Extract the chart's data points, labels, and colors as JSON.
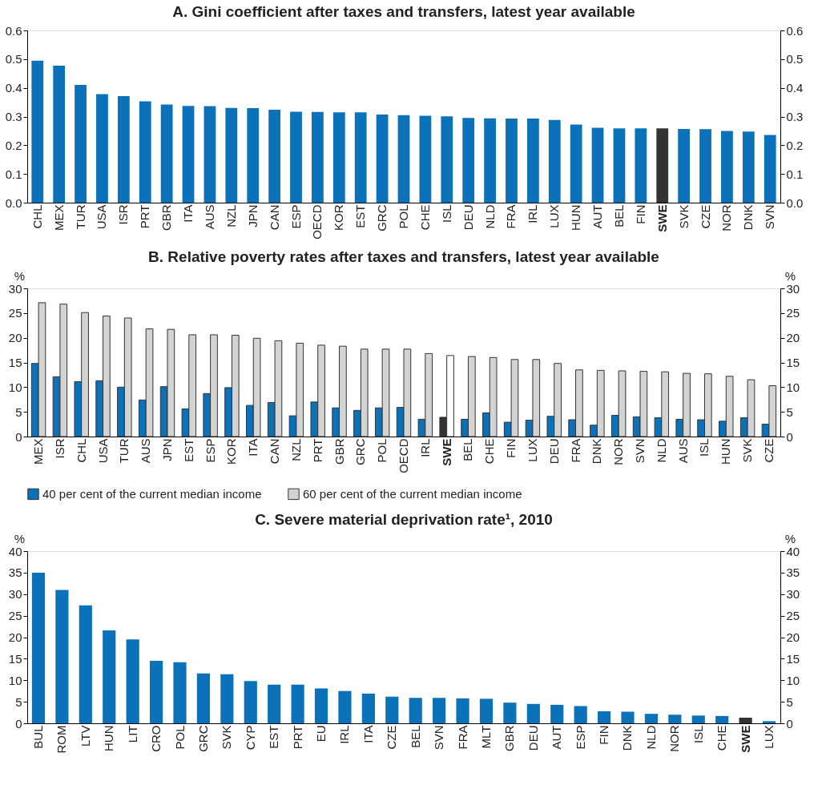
{
  "chart_data": [
    {
      "type": "bar",
      "title": "A. Gini coefficient after taxes and transfers, latest year available",
      "categories": [
        "CHL",
        "MEX",
        "TUR",
        "USA",
        "ISR",
        "PRT",
        "GBR",
        "ITA",
        "AUS",
        "NZL",
        "JPN",
        "CAN",
        "ESP",
        "OECD",
        "KOR",
        "EST",
        "GRC",
        "POL",
        "CHE",
        "ISL",
        "DEU",
        "NLD",
        "FRA",
        "IRL",
        "LUX",
        "HUN",
        "AUT",
        "BEL",
        "FIN",
        "SWE",
        "SVK",
        "CZE",
        "NOR",
        "DNK",
        "SVN"
      ],
      "values": [
        0.495,
        0.477,
        0.41,
        0.378,
        0.371,
        0.353,
        0.342,
        0.337,
        0.336,
        0.33,
        0.329,
        0.324,
        0.317,
        0.316,
        0.315,
        0.315,
        0.307,
        0.305,
        0.303,
        0.301,
        0.295,
        0.294,
        0.293,
        0.293,
        0.288,
        0.272,
        0.261,
        0.259,
        0.259,
        0.259,
        0.257,
        0.256,
        0.25,
        0.248,
        0.236
      ],
      "color": "#0b72b9",
      "colors": [
        "#0b72b9",
        "#0b72b9",
        "#0b72b9",
        "#0b72b9",
        "#0b72b9",
        "#0b72b9",
        "#0b72b9",
        "#0b72b9",
        "#0b72b9",
        "#0b72b9",
        "#0b72b9",
        "#0b72b9",
        "#0b72b9",
        "#0b72b9",
        "#0b72b9",
        "#0b72b9",
        "#0b72b9",
        "#0b72b9",
        "#0b72b9",
        "#0b72b9",
        "#0b72b9",
        "#0b72b9",
        "#0b72b9",
        "#0b72b9",
        "#0b72b9",
        "#0b72b9",
        "#0b72b9",
        "#0b72b9",
        "#0b72b9",
        "#333333",
        "#0b72b9",
        "#0b72b9",
        "#0b72b9",
        "#0b72b9",
        "#0b72b9"
      ],
      "ylim": [
        0,
        0.6
      ],
      "yticks": [
        {
          "value": 0,
          "label": "0.0"
        },
        0.1,
        0.2,
        0.3,
        0.4,
        0.5,
        0.6
      ],
      "y2lim": [
        0,
        0.6
      ],
      "y2ticks": [
        {
          "value": 0,
          "label": "0.0"
        },
        0.1,
        0.2,
        0.3,
        0.4,
        0.5,
        0.6
      ],
      "grid": false
    },
    {
      "type": "bar",
      "title": "B. Relative poverty rates after taxes and transfers, latest year available",
      "ylabel": "%",
      "y2label": "%",
      "categories": [
        "MEX",
        "ISR",
        "CHL",
        "USA",
        "TUR",
        "AUS",
        "JPN",
        "EST",
        "ESP",
        "KOR",
        "ITA",
        "CAN",
        "NZL",
        "PRT",
        "GBR",
        "GRC",
        "POL",
        "OECD",
        "IRL",
        "SWE",
        "BEL",
        "CHE",
        "FIN",
        "LUX",
        "DEU",
        "FRA",
        "DNK",
        "NOR",
        "SVN",
        "NLD",
        "AUS",
        "ISL",
        "HUN",
        "SVK",
        "CZE"
      ],
      "series": [
        {
          "name": "40 per cent of the current median income",
          "color": "#0b72b9",
          "values": [
            14.8,
            12.1,
            11.1,
            11.3,
            10.0,
            7.4,
            10.1,
            5.6,
            8.7,
            9.9,
            6.3,
            6.9,
            4.2,
            7.0,
            5.8,
            5.3,
            5.8,
            5.9,
            3.5,
            3.9,
            3.5,
            4.8,
            2.9,
            3.3,
            4.1,
            3.4,
            2.3,
            4.3,
            4.0,
            3.8,
            3.5,
            3.4,
            3.1,
            3.8,
            2.5
          ],
          "colors": [
            "#0b72b9",
            "#0b72b9",
            "#0b72b9",
            "#0b72b9",
            "#0b72b9",
            "#0b72b9",
            "#0b72b9",
            "#0b72b9",
            "#0b72b9",
            "#0b72b9",
            "#0b72b9",
            "#0b72b9",
            "#0b72b9",
            "#0b72b9",
            "#0b72b9",
            "#0b72b9",
            "#0b72b9",
            "#0b72b9",
            "#0b72b9",
            "#333333",
            "#0b72b9",
            "#0b72b9",
            "#0b72b9",
            "#0b72b9",
            "#0b72b9",
            "#0b72b9",
            "#0b72b9",
            "#0b72b9",
            "#0b72b9",
            "#0b72b9",
            "#0b72b9",
            "#0b72b9",
            "#0b72b9",
            "#0b72b9",
            "#0b72b9"
          ]
        },
        {
          "name": "60 per cent of the current median income",
          "color": "#d3d3d3",
          "values": [
            27.1,
            26.8,
            25.1,
            24.4,
            24.0,
            21.8,
            21.7,
            20.6,
            20.6,
            20.5,
            19.9,
            19.4,
            18.9,
            18.5,
            18.3,
            17.7,
            17.7,
            17.7,
            16.8,
            16.4,
            16.2,
            16.0,
            15.6,
            15.6,
            14.8,
            13.5,
            13.4,
            13.3,
            13.2,
            13.1,
            12.8,
            12.7,
            12.2,
            11.5,
            10.3
          ],
          "colors": [
            "#d3d3d3",
            "#d3d3d3",
            "#d3d3d3",
            "#d3d3d3",
            "#d3d3d3",
            "#d3d3d3",
            "#d3d3d3",
            "#d3d3d3",
            "#d3d3d3",
            "#d3d3d3",
            "#d3d3d3",
            "#d3d3d3",
            "#d3d3d3",
            "#d3d3d3",
            "#d3d3d3",
            "#d3d3d3",
            "#d3d3d3",
            "#d3d3d3",
            "#d3d3d3",
            "#ffffff",
            "#d3d3d3",
            "#d3d3d3",
            "#d3d3d3",
            "#d3d3d3",
            "#d3d3d3",
            "#d3d3d3",
            "#d3d3d3",
            "#d3d3d3",
            "#d3d3d3",
            "#d3d3d3",
            "#d3d3d3",
            "#d3d3d3",
            "#d3d3d3",
            "#d3d3d3",
            "#d3d3d3"
          ]
        }
      ],
      "ylim": [
        0,
        30
      ],
      "yticks": [
        0,
        5,
        10,
        15,
        20,
        25,
        30
      ],
      "y2lim": [
        0,
        30
      ],
      "y2ticks": [
        0,
        5,
        10,
        15,
        20,
        25,
        30
      ],
      "grid": false,
      "legend": "bottom"
    },
    {
      "type": "bar",
      "title": "C. Severe material deprivation rate¹, 2010",
      "ylabel": "%",
      "y2label": "%",
      "categories": [
        "BUL",
        "ROM",
        "LTV",
        "HUN",
        "LIT",
        "CRO",
        "POL",
        "GRC",
        "SVK",
        "CYP",
        "EST",
        "PRT",
        "EU",
        "IRL",
        "ITA",
        "CZE",
        "BEL",
        "SVN",
        "FRA",
        "MLT",
        "GBR",
        "DEU",
        "AUT",
        "ESP",
        "FIN",
        "DNK",
        "NLD",
        "NOR",
        "ISL",
        "CHE",
        "SWE",
        "LUX"
      ],
      "values": [
        35.0,
        31.0,
        27.4,
        21.6,
        19.5,
        14.5,
        14.2,
        11.6,
        11.4,
        9.8,
        9.0,
        9.0,
        8.1,
        7.5,
        6.9,
        6.2,
        5.9,
        5.9,
        5.8,
        5.7,
        4.8,
        4.5,
        4.3,
        4.0,
        2.8,
        2.7,
        2.2,
        2.0,
        1.8,
        1.7,
        1.3,
        0.5
      ],
      "color": "#0b72b9",
      "colors": [
        "#0b72b9",
        "#0b72b9",
        "#0b72b9",
        "#0b72b9",
        "#0b72b9",
        "#0b72b9",
        "#0b72b9",
        "#0b72b9",
        "#0b72b9",
        "#0b72b9",
        "#0b72b9",
        "#0b72b9",
        "#0b72b9",
        "#0b72b9",
        "#0b72b9",
        "#0b72b9",
        "#0b72b9",
        "#0b72b9",
        "#0b72b9",
        "#0b72b9",
        "#0b72b9",
        "#0b72b9",
        "#0b72b9",
        "#0b72b9",
        "#0b72b9",
        "#0b72b9",
        "#0b72b9",
        "#0b72b9",
        "#0b72b9",
        "#0b72b9",
        "#333333",
        "#0b72b9"
      ],
      "ylim": [
        0,
        40
      ],
      "yticks": [
        0,
        5,
        10,
        15,
        20,
        25,
        30,
        35,
        40
      ],
      "y2lim": [
        0,
        40
      ],
      "y2ticks": [
        0,
        5,
        10,
        15,
        20,
        25,
        30,
        35,
        40
      ],
      "grid": false
    }
  ]
}
